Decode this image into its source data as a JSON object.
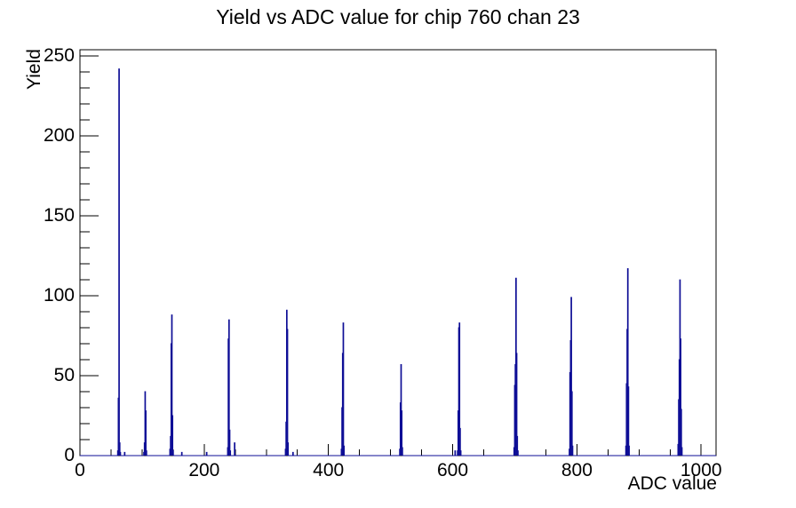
{
  "chart_data": {
    "type": "line",
    "subtype": "step-histogram",
    "title": "Yield vs ADC value for chip 760 chan 23",
    "xlabel": "ADC value",
    "ylabel": "Yield",
    "xlim": [
      0,
      1024
    ],
    "ylim": [
      0,
      254
    ],
    "x_major_ticks": [
      0,
      200,
      400,
      600,
      800,
      1000
    ],
    "x_major_tick_labels": [
      "0",
      "200",
      "400",
      "600",
      "800",
      "1000"
    ],
    "x_minor_step": 50,
    "y_major_ticks": [
      0,
      50,
      100,
      150,
      200,
      250
    ],
    "y_major_tick_labels": [
      "0",
      "50",
      "100",
      "150",
      "200",
      "250"
    ],
    "y_minor_step": 10,
    "grid": false,
    "legend": false,
    "line_color": "#0e0e96",
    "frame_color": "#000000",
    "bins_format": [
      "adc_value",
      "yield"
    ],
    "bins": [
      [
        61,
        3
      ],
      [
        62,
        36
      ],
      [
        63,
        242
      ],
      [
        64,
        8
      ],
      [
        65,
        2
      ],
      [
        72,
        2
      ],
      [
        103,
        2
      ],
      [
        104,
        8
      ],
      [
        105,
        40
      ],
      [
        106,
        28
      ],
      [
        107,
        3
      ],
      [
        145,
        4
      ],
      [
        146,
        12
      ],
      [
        147,
        70
      ],
      [
        148,
        88
      ],
      [
        149,
        25
      ],
      [
        150,
        3
      ],
      [
        164,
        2
      ],
      [
        204,
        2
      ],
      [
        238,
        5
      ],
      [
        239,
        73
      ],
      [
        240,
        85
      ],
      [
        241,
        16
      ],
      [
        242,
        3
      ],
      [
        249,
        8
      ],
      [
        331,
        4
      ],
      [
        332,
        21
      ],
      [
        333,
        91
      ],
      [
        334,
        79
      ],
      [
        335,
        8
      ],
      [
        343,
        2
      ],
      [
        421,
        4
      ],
      [
        422,
        30
      ],
      [
        423,
        64
      ],
      [
        424,
        83
      ],
      [
        425,
        6
      ],
      [
        515,
        4
      ],
      [
        516,
        33
      ],
      [
        517,
        57
      ],
      [
        518,
        28
      ],
      [
        519,
        5
      ],
      [
        604,
        3
      ],
      [
        608,
        3
      ],
      [
        609,
        28
      ],
      [
        610,
        80
      ],
      [
        611,
        83
      ],
      [
        612,
        17
      ],
      [
        613,
        3
      ],
      [
        699,
        5
      ],
      [
        700,
        44
      ],
      [
        701,
        57
      ],
      [
        702,
        111
      ],
      [
        703,
        64
      ],
      [
        704,
        12
      ],
      [
        705,
        3
      ],
      [
        788,
        4
      ],
      [
        789,
        52
      ],
      [
        790,
        72
      ],
      [
        791,
        99
      ],
      [
        792,
        40
      ],
      [
        793,
        6
      ],
      [
        879,
        6
      ],
      [
        880,
        45
      ],
      [
        881,
        79
      ],
      [
        882,
        117
      ],
      [
        883,
        43
      ],
      [
        884,
        6
      ],
      [
        963,
        7
      ],
      [
        964,
        35
      ],
      [
        965,
        60
      ],
      [
        966,
        110
      ],
      [
        967,
        73
      ],
      [
        968,
        29
      ],
      [
        969,
        5
      ]
    ]
  }
}
